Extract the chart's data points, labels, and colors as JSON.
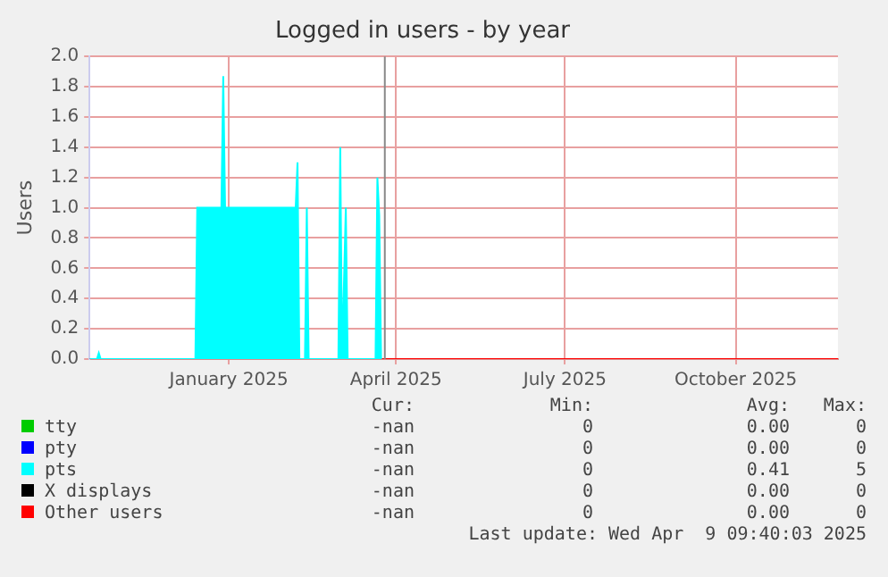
{
  "chart_data": {
    "type": "area",
    "title": "Logged in users - by year",
    "ylabel": "Users",
    "xlim": [
      "2024-10-18",
      "2025-11-25"
    ],
    "xticks": [
      {
        "value": "2025-01-01",
        "label": "January 2025"
      },
      {
        "value": "2025-04-01",
        "label": "April 2025"
      },
      {
        "value": "2025-07-01",
        "label": "July 2025"
      },
      {
        "value": "2025-10-01",
        "label": "October 2025"
      }
    ],
    "ylim": [
      0,
      2
    ],
    "yticks": [
      {
        "value": 0,
        "label": "0.0"
      },
      0.2,
      0.4,
      0.6,
      0.8,
      {
        "value": 1,
        "label": "1.0"
      },
      1.2,
      1.4,
      1.6,
      1.8,
      {
        "value": 2,
        "label": "2.0"
      }
    ],
    "grid": true,
    "legend": "bottom",
    "series": [
      {
        "name": "tty",
        "color": "#00cc00"
      },
      {
        "name": "pty",
        "color": "#0000ff"
      },
      {
        "name": "pts",
        "color": "#00ffff",
        "x": [
          "2024-10-18",
          "2024-10-22",
          "2024-10-23",
          "2024-10-24",
          "2024-12-14",
          "2024-12-15",
          "2024-12-28",
          "2024-12-29",
          "2024-12-30",
          "2025-02-06",
          "2025-02-07",
          "2025-02-08",
          "2025-02-11",
          "2025-02-12",
          "2025-02-13",
          "2025-03-01",
          "2025-03-02",
          "2025-03-03",
          "2025-03-05",
          "2025-03-06",
          "2025-03-21",
          "2025-03-22",
          "2025-03-23",
          "2025-03-24"
        ],
        "values": [
          0,
          0,
          0.04,
          0,
          0,
          1,
          1,
          1.87,
          1,
          1,
          1.3,
          0,
          0,
          1,
          0,
          0,
          1.4,
          0,
          1,
          0,
          0,
          1.2,
          0.95,
          0
        ]
      },
      {
        "name": "X displays",
        "color": "#000000"
      },
      {
        "name": "Other users",
        "type": "line",
        "color": "#ff0000",
        "x": [
          "2024-10-18",
          "2025-11-25"
        ],
        "values": [
          0,
          0
        ]
      }
    ],
    "ref_lines": [
      {
        "axis": "x",
        "value": "2025-03-26",
        "color": "#888888"
      }
    ],
    "annotations": [
      "Cur:",
      "Min:",
      "Avg:",
      "Max:",
      "-nan",
      "0",
      "0.00",
      "0",
      "-nan",
      "0",
      "0.00",
      "0",
      "-nan",
      "0",
      "0.41",
      "5",
      "-nan",
      "0",
      "0.00",
      "0",
      "-nan",
      "0",
      "0.00",
      "0",
      "Last update: Wed Apr  9 09:40:03 2025"
    ]
  }
}
